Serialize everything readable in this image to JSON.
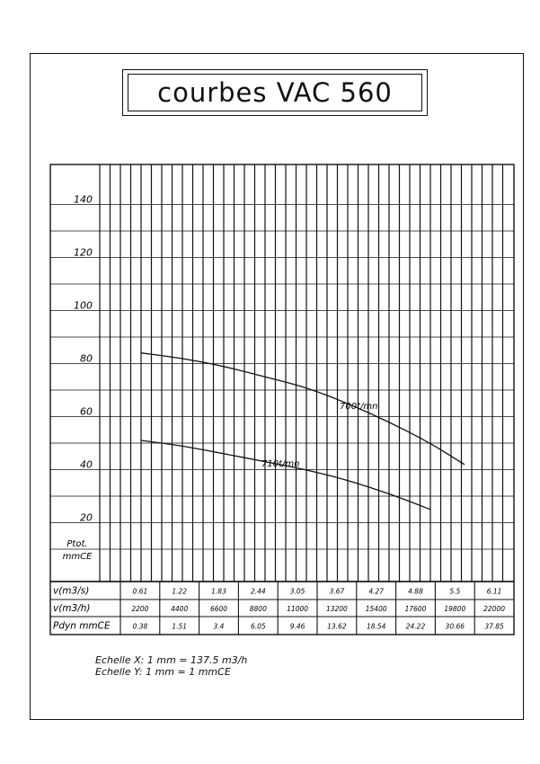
{
  "title": "courbes VAC 560",
  "chart_data": {
    "type": "line",
    "title": "courbes VAC 560",
    "ylabel": "Ptot. mmCE",
    "yticks": [
      20,
      40,
      60,
      80,
      100,
      120,
      140
    ],
    "ylim": [
      0,
      150
    ],
    "x_unit": "m3/h",
    "xlim": [
      0,
      22000
    ],
    "grid": true,
    "series": [
      {
        "name": "700t/mn",
        "x": [
          2200,
          4400,
          6600,
          8800,
          11000,
          13200,
          15400,
          17600,
          19400
        ],
        "y": [
          84,
          82,
          79,
          75,
          71,
          65,
          58,
          50,
          42
        ]
      },
      {
        "name": "710t/mn",
        "x": [
          2200,
          4400,
          6600,
          8800,
          11000,
          13200,
          15400,
          17600
        ],
        "y": [
          51,
          49,
          46,
          43,
          40,
          36,
          31,
          25
        ]
      }
    ],
    "table": {
      "rows": [
        {
          "label": "v(m3/s)",
          "values": [
            "0.61",
            "1.22",
            "1.83",
            "2.44",
            "3.05",
            "3.67",
            "4.27",
            "4.88",
            "5.5",
            "6.11"
          ]
        },
        {
          "label": "v(m3/h)",
          "values": [
            "2200",
            "4400",
            "6600",
            "8800",
            "11000",
            "13200",
            "15400",
            "17600",
            "19800",
            "22000"
          ]
        },
        {
          "label": "Pdyn mmCE",
          "values": [
            "0.38",
            "1.51",
            "3.4",
            "6.05",
            "9.46",
            "13.62",
            "18.54",
            "24.22",
            "30.66",
            "37.85"
          ]
        }
      ]
    }
  },
  "notes": {
    "scale_x": "Echelle X: 1 mm = 137.5 m3/h",
    "scale_y": "Echelle Y: 1 mm = 1 mmCE"
  }
}
